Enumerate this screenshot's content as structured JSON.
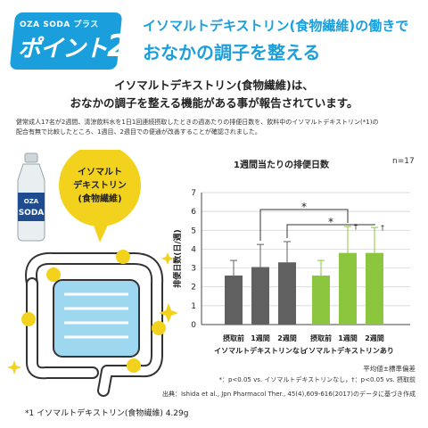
{
  "badge": {
    "brand": "OZA SODA プラス",
    "label": "ポイント",
    "number": "2"
  },
  "headline": {
    "line1": "イソマルトデキストリン(食物繊維)の働きで",
    "line2": "おなかの調子を整える"
  },
  "lead": {
    "line1": "イソマルトデキストリン(食物繊維)は、",
    "line2": "おなかの調子を整える機能がある事が報告されています。"
  },
  "description": {
    "line1": "健常成人17名が2週間、清涼飲料水を1日1回連続摂取したときの週あたりの排便日数を、飲料中のイソマルトデキストリン(*1)の",
    "line2": "配合有無で比較したところ、1週目、2週目での便通が改善することが確認されました。"
  },
  "illustration": {
    "bubble_line1": "イソマルト",
    "bubble_line2": "デキストリン",
    "bubble_line3": "(食物繊維)",
    "bottle_brand": "OZA",
    "bottle_name": "SODA"
  },
  "colors": {
    "accent": "#1a9fdc",
    "bar_gray": "#606060",
    "bar_green": "#8cc63f",
    "bubble": "#f2d21c",
    "gut_fill": "#9ed8f0"
  },
  "chart_data": {
    "type": "bar",
    "title": "1週間当たりの排便日数",
    "n_label": "n=17",
    "ylabel": "排便日数(日/週)",
    "ylim": [
      0,
      7
    ],
    "yticks": [
      "0",
      "1",
      "2",
      "3",
      "4",
      "5",
      "6",
      "7"
    ],
    "categories": [
      "摂取前",
      "1週間",
      "2週間",
      "摂取前",
      "1週間",
      "2週間"
    ],
    "groups": [
      {
        "name": "イソマルトデキストリンなし",
        "color": "#606060",
        "values": [
          2.6,
          3.05,
          3.3
        ],
        "errors": [
          0.8,
          1.2,
          1.1
        ],
        "marks": [
          "",
          "",
          ""
        ]
      },
      {
        "name": "イソマルトデキストリンあり",
        "color": "#8cc63f",
        "values": [
          2.6,
          3.8,
          3.8
        ],
        "errors": [
          0.8,
          1.4,
          1.35
        ],
        "marks": [
          "",
          "†",
          "†"
        ]
      }
    ],
    "significance": [
      {
        "label": "*",
        "from_group": 0,
        "from_bar": 1,
        "to_group": 1,
        "to_bar": 1
      },
      {
        "label": "*",
        "from_group": 0,
        "from_bar": 2,
        "to_group": 1,
        "to_bar": 2
      }
    ],
    "legend_note": "平均値±標準偏差",
    "significance_note": "*：p<0.05 vs. イソマルトデキストリンなし，†：p<0.05 vs. 摂取前"
  },
  "source": "出典：Ishida et al., Jpn Pharmacol Ther., 45(4),609-616(2017)のデータに基づき作成",
  "footnote": "*1 イソマルトデキストリン(食物繊維) 4.29g"
}
